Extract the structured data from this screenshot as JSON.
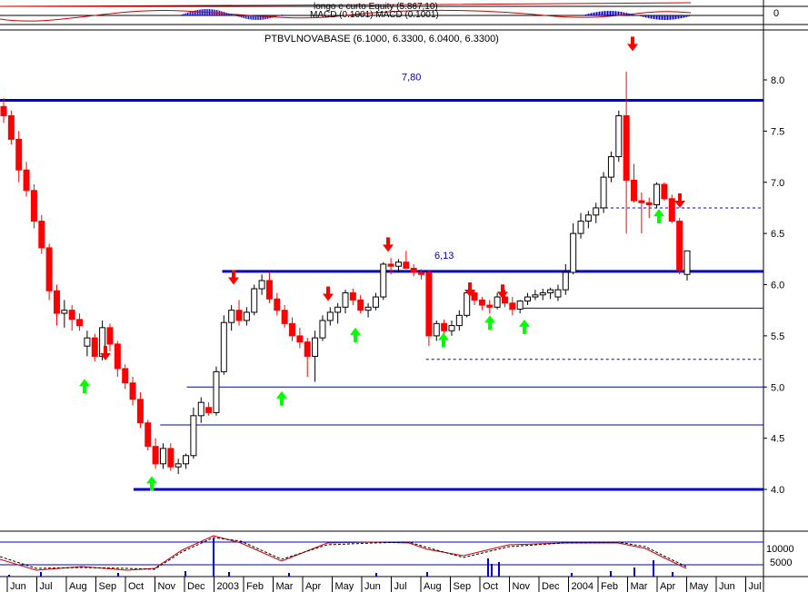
{
  "macd_panel": {
    "label_line1": "longo e curto Equity (5.867,10)",
    "label_line2": "MACD (0.1001) MACD (0.1001)",
    "zero_label": "0"
  },
  "price_panel": {
    "title": "PTBVLNOVABASE (6.1000, 6.3300, 6.0400, 6.3300)"
  },
  "volume_panel": {
    "tick_labels": [
      "10000",
      "5000"
    ]
  },
  "colors": {
    "up_body": "#ffffff",
    "down_body": "#ff0000",
    "dark_body": "#000000",
    "support_line": "#0000cc",
    "buy_arrow": "#00ff00",
    "sell_arrow": "#ff0000",
    "oscillator_line": "#cc0000",
    "oscillator_signal": "#000000",
    "volume_bar": "#0000cc"
  },
  "chart_data": {
    "type": "candlestick",
    "title": "PTBVLNOVABASE (6.1000, 6.3300, 6.0400, 6.3300)",
    "y_axis": {
      "min": 4.0,
      "max": 8.0,
      "ticks": [
        "4.0",
        "4.5",
        "5.0",
        "5.5",
        "6.0",
        "6.5",
        "7.0",
        "7.5",
        "8.0"
      ],
      "tick_values": [
        4.0,
        4.5,
        5.0,
        5.5,
        6.0,
        6.5,
        7.0,
        7.5,
        8.0
      ]
    },
    "x_axis": {
      "labels": [
        "Jun",
        "Jul",
        "Aug",
        "Sep",
        "Oct",
        "Nov",
        "Dec",
        "2003",
        "Feb",
        "Mar",
        "Apr",
        "May",
        "Jun",
        "Jul",
        "Aug",
        "Sep",
        "Oct",
        "Nov",
        "Dec",
        "2004",
        "Feb",
        "Mar",
        "Apr",
        "May",
        "Jun",
        "Jul"
      ]
    },
    "horizontal_levels": [
      {
        "value": 7.8,
        "label": "7,80",
        "style": "thick"
      },
      {
        "value": 6.13,
        "label": "6,13",
        "style": "thick",
        "start_month": "Dec"
      },
      {
        "value": 6.75,
        "label": "",
        "style": "dashed",
        "start_month": "Jan 2004"
      },
      {
        "value": 5.77,
        "label": "",
        "style": "thin",
        "start_month": "Oct"
      },
      {
        "value": 5.27,
        "label": "",
        "style": "dashed",
        "start_month": "Aug"
      },
      {
        "value": 5.0,
        "label": "",
        "style": "thin",
        "start_month": "Nov"
      },
      {
        "value": 4.63,
        "label": "",
        "style": "thin",
        "start_month": "Oct"
      },
      {
        "value": 4.0,
        "label": "",
        "style": "thick",
        "start_month": "Sep"
      }
    ],
    "ohlc": [
      [
        7.74,
        7.82,
        7.58,
        7.65
      ],
      [
        7.65,
        7.7,
        7.37,
        7.42
      ],
      [
        7.42,
        7.5,
        7.0,
        7.12
      ],
      [
        7.12,
        7.2,
        6.86,
        6.92
      ],
      [
        6.92,
        6.98,
        6.55,
        6.62
      ],
      [
        6.62,
        6.68,
        6.3,
        6.36
      ],
      [
        6.36,
        6.4,
        5.85,
        5.94
      ],
      [
        5.94,
        6.0,
        5.6,
        5.72
      ],
      [
        5.72,
        5.85,
        5.58,
        5.75
      ],
      [
        5.75,
        5.8,
        5.55,
        5.66
      ],
      [
        5.66,
        5.72,
        5.55,
        5.6
      ],
      [
        5.4,
        5.55,
        5.3,
        5.48
      ],
      [
        5.48,
        5.52,
        5.25,
        5.3
      ],
      [
        5.3,
        5.65,
        5.26,
        5.58
      ],
      [
        5.58,
        5.62,
        5.35,
        5.42
      ],
      [
        5.42,
        5.45,
        5.1,
        5.18
      ],
      [
        5.18,
        5.22,
        4.98,
        5.04
      ],
      [
        5.04,
        5.1,
        4.82,
        4.88
      ],
      [
        4.88,
        4.95,
        4.6,
        4.65
      ],
      [
        4.65,
        4.68,
        4.38,
        4.42
      ],
      [
        4.42,
        4.5,
        4.2,
        4.25
      ],
      [
        4.25,
        4.45,
        4.2,
        4.4
      ],
      [
        4.4,
        4.45,
        4.18,
        4.22
      ],
      [
        4.22,
        4.3,
        4.15,
        4.25
      ],
      [
        4.25,
        4.35,
        4.2,
        4.33
      ],
      [
        4.33,
        4.8,
        4.3,
        4.72
      ],
      [
        4.72,
        4.9,
        4.65,
        4.85
      ],
      [
        4.8,
        4.85,
        4.72,
        4.75
      ],
      [
        4.75,
        5.2,
        4.72,
        5.15
      ],
      [
        5.15,
        5.7,
        5.12,
        5.63
      ],
      [
        5.63,
        5.8,
        5.55,
        5.75
      ],
      [
        5.75,
        5.85,
        5.6,
        5.65
      ],
      [
        5.65,
        5.78,
        5.6,
        5.73
      ],
      [
        5.73,
        6.0,
        5.7,
        5.96
      ],
      [
        5.96,
        6.1,
        5.9,
        6.04
      ],
      [
        6.04,
        6.12,
        5.82,
        5.86
      ],
      [
        5.86,
        5.92,
        5.7,
        5.75
      ],
      [
        5.75,
        5.8,
        5.58,
        5.62
      ],
      [
        5.62,
        5.68,
        5.45,
        5.5
      ],
      [
        5.5,
        5.58,
        5.38,
        5.44
      ],
      [
        5.44,
        5.48,
        5.1,
        5.3
      ],
      [
        5.3,
        5.55,
        5.05,
        5.48
      ],
      [
        5.48,
        5.7,
        5.45,
        5.65
      ],
      [
        5.65,
        5.78,
        5.6,
        5.73
      ],
      [
        5.73,
        5.82,
        5.62,
        5.78
      ],
      [
        5.78,
        5.95,
        5.72,
        5.92
      ],
      [
        5.92,
        5.96,
        5.8,
        5.85
      ],
      [
        5.85,
        5.9,
        5.72,
        5.75
      ],
      [
        5.75,
        5.82,
        5.68,
        5.78
      ],
      [
        5.78,
        5.92,
        5.75,
        5.88
      ],
      [
        5.88,
        6.22,
        5.85,
        6.2
      ],
      [
        6.2,
        6.26,
        6.1,
        6.18
      ],
      [
        6.18,
        6.25,
        6.12,
        6.22
      ],
      [
        6.22,
        6.33,
        6.15,
        6.16
      ],
      [
        6.16,
        6.2,
        6.08,
        6.12
      ],
      [
        6.12,
        6.15,
        6.05,
        6.1
      ],
      [
        6.12,
        6.14,
        5.4,
        5.5
      ],
      [
        5.5,
        5.65,
        5.45,
        5.62
      ],
      [
        5.62,
        5.66,
        5.48,
        5.55
      ],
      [
        5.55,
        5.65,
        5.5,
        5.6
      ],
      [
        5.6,
        5.75,
        5.55,
        5.7
      ],
      [
        5.7,
        5.95,
        5.68,
        5.92
      ],
      [
        5.92,
        5.95,
        5.8,
        5.85
      ],
      [
        5.85,
        5.88,
        5.75,
        5.8
      ],
      [
        5.8,
        5.85,
        5.72,
        5.78
      ],
      [
        5.78,
        5.92,
        5.76,
        5.88
      ],
      [
        5.88,
        5.95,
        5.78,
        5.82
      ],
      [
        5.82,
        5.88,
        5.7,
        5.76
      ],
      [
        5.76,
        5.85,
        5.72,
        5.84
      ],
      [
        5.84,
        5.92,
        5.8,
        5.88
      ],
      [
        5.88,
        5.95,
        5.85,
        5.9
      ],
      [
        5.9,
        5.96,
        5.85,
        5.92
      ],
      [
        5.92,
        5.97,
        5.86,
        5.95
      ],
      [
        5.88,
        6.0,
        5.84,
        5.95
      ],
      [
        5.95,
        6.2,
        5.9,
        6.12
      ],
      [
        6.12,
        6.6,
        6.1,
        6.5
      ],
      [
        6.5,
        6.7,
        6.45,
        6.62
      ],
      [
        6.62,
        6.72,
        6.55,
        6.68
      ],
      [
        6.68,
        6.8,
        6.6,
        6.75
      ],
      [
        6.75,
        7.1,
        6.7,
        7.05
      ],
      [
        7.05,
        7.3,
        7.0,
        7.25
      ],
      [
        7.25,
        7.7,
        7.2,
        7.65
      ],
      [
        7.65,
        8.08,
        6.5,
        7.02
      ],
      [
        7.02,
        7.18,
        6.8,
        6.82
      ],
      [
        6.82,
        6.9,
        6.5,
        6.8
      ],
      [
        6.8,
        6.85,
        6.65,
        6.78
      ],
      [
        6.78,
        7.0,
        6.75,
        6.98
      ],
      [
        6.98,
        7.0,
        6.82,
        6.84
      ],
      [
        6.84,
        6.88,
        6.6,
        6.62
      ],
      [
        6.62,
        6.65,
        6.1,
        6.14
      ],
      [
        6.1,
        6.33,
        6.04,
        6.33
      ]
    ]
  }
}
